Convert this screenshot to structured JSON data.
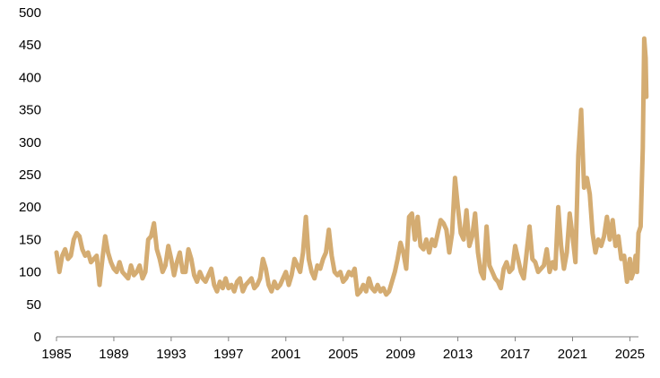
{
  "chart_data": {
    "type": "line",
    "title": "",
    "xlabel": "",
    "ylabel": "",
    "xlim": [
      1985,
      2025.6
    ],
    "ylim": [
      0,
      500
    ],
    "yticks": [
      0,
      50,
      100,
      150,
      200,
      250,
      300,
      350,
      400,
      450,
      500
    ],
    "xticks": [
      1985,
      1989,
      1993,
      1997,
      2001,
      2005,
      2009,
      2013,
      2017,
      2021,
      2025
    ],
    "grid": false,
    "legend": "none",
    "series": [
      {
        "color": "#D4AC72",
        "points": [
          [
            1985.0,
            130
          ],
          [
            1985.2,
            100
          ],
          [
            1985.4,
            125
          ],
          [
            1985.6,
            135
          ],
          [
            1985.8,
            120
          ],
          [
            1986.0,
            125
          ],
          [
            1986.2,
            150
          ],
          [
            1986.4,
            160
          ],
          [
            1986.6,
            155
          ],
          [
            1986.8,
            135
          ],
          [
            1987.0,
            125
          ],
          [
            1987.2,
            130
          ],
          [
            1987.4,
            115
          ],
          [
            1987.6,
            120
          ],
          [
            1987.8,
            125
          ],
          [
            1988.0,
            80
          ],
          [
            1988.2,
            120
          ],
          [
            1988.4,
            155
          ],
          [
            1988.6,
            130
          ],
          [
            1988.8,
            115
          ],
          [
            1989.0,
            105
          ],
          [
            1989.2,
            100
          ],
          [
            1989.4,
            115
          ],
          [
            1989.6,
            100
          ],
          [
            1989.8,
            95
          ],
          [
            1990.0,
            90
          ],
          [
            1990.2,
            110
          ],
          [
            1990.4,
            95
          ],
          [
            1990.6,
            100
          ],
          [
            1990.8,
            110
          ],
          [
            1991.0,
            90
          ],
          [
            1991.2,
            100
          ],
          [
            1991.4,
            150
          ],
          [
            1991.6,
            155
          ],
          [
            1991.8,
            175
          ],
          [
            1992.0,
            135
          ],
          [
            1992.2,
            120
          ],
          [
            1992.4,
            100
          ],
          [
            1992.6,
            110
          ],
          [
            1992.8,
            140
          ],
          [
            1993.0,
            120
          ],
          [
            1993.2,
            95
          ],
          [
            1993.4,
            115
          ],
          [
            1993.6,
            130
          ],
          [
            1993.8,
            100
          ],
          [
            1994.0,
            100
          ],
          [
            1994.2,
            135
          ],
          [
            1994.4,
            120
          ],
          [
            1994.6,
            95
          ],
          [
            1994.8,
            85
          ],
          [
            1995.0,
            100
          ],
          [
            1995.2,
            90
          ],
          [
            1995.4,
            85
          ],
          [
            1995.6,
            95
          ],
          [
            1995.8,
            105
          ],
          [
            1996.0,
            80
          ],
          [
            1996.2,
            70
          ],
          [
            1996.4,
            85
          ],
          [
            1996.6,
            75
          ],
          [
            1996.8,
            90
          ],
          [
            1997.0,
            75
          ],
          [
            1997.2,
            80
          ],
          [
            1997.4,
            70
          ],
          [
            1997.6,
            85
          ],
          [
            1997.8,
            90
          ],
          [
            1998.0,
            70
          ],
          [
            1998.2,
            80
          ],
          [
            1998.4,
            85
          ],
          [
            1998.6,
            90
          ],
          [
            1998.8,
            75
          ],
          [
            1999.0,
            80
          ],
          [
            1999.2,
            90
          ],
          [
            1999.4,
            120
          ],
          [
            1999.6,
            105
          ],
          [
            1999.8,
            80
          ],
          [
            2000.0,
            70
          ],
          [
            2000.2,
            85
          ],
          [
            2000.4,
            75
          ],
          [
            2000.6,
            80
          ],
          [
            2000.8,
            90
          ],
          [
            2001.0,
            100
          ],
          [
            2001.2,
            80
          ],
          [
            2001.4,
            95
          ],
          [
            2001.6,
            120
          ],
          [
            2001.8,
            110
          ],
          [
            2002.0,
            100
          ],
          [
            2002.2,
            130
          ],
          [
            2002.4,
            185
          ],
          [
            2002.6,
            120
          ],
          [
            2002.8,
            100
          ],
          [
            2003.0,
            90
          ],
          [
            2003.2,
            110
          ],
          [
            2003.4,
            105
          ],
          [
            2003.6,
            120
          ],
          [
            2003.8,
            130
          ],
          [
            2004.0,
            165
          ],
          [
            2004.2,
            125
          ],
          [
            2004.4,
            100
          ],
          [
            2004.6,
            95
          ],
          [
            2004.8,
            100
          ],
          [
            2005.0,
            85
          ],
          [
            2005.2,
            90
          ],
          [
            2005.4,
            100
          ],
          [
            2005.6,
            95
          ],
          [
            2005.8,
            105
          ],
          [
            2006.0,
            65
          ],
          [
            2006.2,
            70
          ],
          [
            2006.4,
            80
          ],
          [
            2006.6,
            70
          ],
          [
            2006.8,
            90
          ],
          [
            2007.0,
            75
          ],
          [
            2007.2,
            70
          ],
          [
            2007.4,
            80
          ],
          [
            2007.6,
            70
          ],
          [
            2007.8,
            75
          ],
          [
            2008.0,
            65
          ],
          [
            2008.2,
            70
          ],
          [
            2008.4,
            85
          ],
          [
            2008.6,
            100
          ],
          [
            2008.8,
            120
          ],
          [
            2009.0,
            145
          ],
          [
            2009.2,
            130
          ],
          [
            2009.4,
            105
          ],
          [
            2009.6,
            185
          ],
          [
            2009.8,
            190
          ],
          [
            2010.0,
            150
          ],
          [
            2010.2,
            185
          ],
          [
            2010.4,
            140
          ],
          [
            2010.6,
            135
          ],
          [
            2010.8,
            150
          ],
          [
            2011.0,
            130
          ],
          [
            2011.2,
            150
          ],
          [
            2011.4,
            140
          ],
          [
            2011.6,
            160
          ],
          [
            2011.8,
            180
          ],
          [
            2012.0,
            175
          ],
          [
            2012.2,
            165
          ],
          [
            2012.4,
            130
          ],
          [
            2012.6,
            160
          ],
          [
            2012.8,
            245
          ],
          [
            2013.0,
            200
          ],
          [
            2013.2,
            160
          ],
          [
            2013.4,
            150
          ],
          [
            2013.6,
            195
          ],
          [
            2013.8,
            140
          ],
          [
            2014.0,
            155
          ],
          [
            2014.2,
            190
          ],
          [
            2014.4,
            130
          ],
          [
            2014.6,
            100
          ],
          [
            2014.8,
            90
          ],
          [
            2015.0,
            170
          ],
          [
            2015.2,
            110
          ],
          [
            2015.4,
            100
          ],
          [
            2015.6,
            90
          ],
          [
            2015.8,
            85
          ],
          [
            2016.0,
            75
          ],
          [
            2016.2,
            105
          ],
          [
            2016.4,
            115
          ],
          [
            2016.6,
            100
          ],
          [
            2016.8,
            105
          ],
          [
            2017.0,
            140
          ],
          [
            2017.2,
            120
          ],
          [
            2017.4,
            100
          ],
          [
            2017.6,
            90
          ],
          [
            2017.8,
            130
          ],
          [
            2018.0,
            170
          ],
          [
            2018.2,
            120
          ],
          [
            2018.4,
            115
          ],
          [
            2018.6,
            100
          ],
          [
            2018.8,
            105
          ],
          [
            2019.0,
            110
          ],
          [
            2019.2,
            135
          ],
          [
            2019.4,
            100
          ],
          [
            2019.6,
            115
          ],
          [
            2019.8,
            105
          ],
          [
            2020.0,
            200
          ],
          [
            2020.2,
            140
          ],
          [
            2020.4,
            105
          ],
          [
            2020.6,
            130
          ],
          [
            2020.8,
            190
          ],
          [
            2021.0,
            155
          ],
          [
            2021.2,
            115
          ],
          [
            2021.4,
            280
          ],
          [
            2021.6,
            350
          ],
          [
            2021.8,
            230
          ],
          [
            2022.0,
            245
          ],
          [
            2022.2,
            220
          ],
          [
            2022.4,
            160
          ],
          [
            2022.6,
            130
          ],
          [
            2022.8,
            150
          ],
          [
            2023.0,
            140
          ],
          [
            2023.2,
            155
          ],
          [
            2023.4,
            185
          ],
          [
            2023.6,
            150
          ],
          [
            2023.8,
            180
          ],
          [
            2024.0,
            140
          ],
          [
            2024.2,
            155
          ],
          [
            2024.4,
            120
          ],
          [
            2024.6,
            125
          ],
          [
            2024.8,
            85
          ],
          [
            2025.0,
            120
          ],
          [
            2025.1,
            90
          ],
          [
            2025.25,
            100
          ],
          [
            2025.4,
            125
          ],
          [
            2025.5,
            100
          ],
          [
            2025.6,
            160
          ],
          [
            2025.75,
            170
          ],
          [
            2025.9,
            290
          ],
          [
            2026.0,
            460
          ],
          [
            2026.1,
            430
          ],
          [
            2026.15,
            370
          ]
        ]
      }
    ]
  }
}
